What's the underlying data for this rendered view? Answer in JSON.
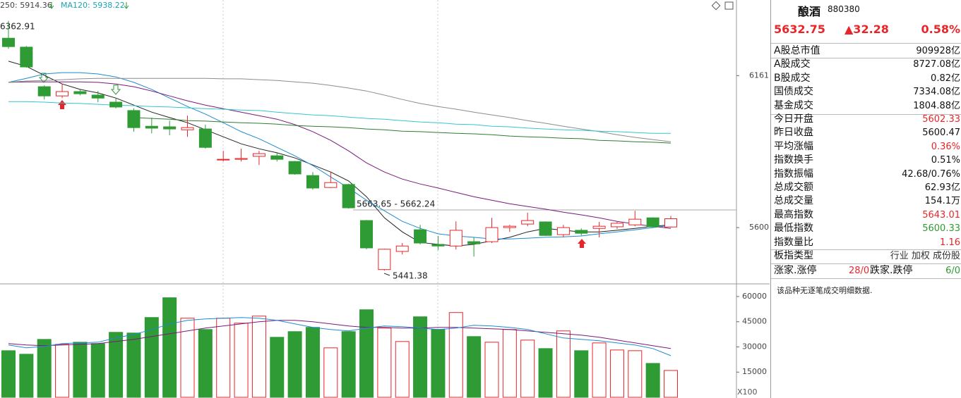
{
  "chart_data": [
    {
      "type": "candlestick",
      "legend": [
        "250: 5914.36",
        "MA120: 5938.22"
      ],
      "legend_colors": [
        "#444444",
        "#1aa3b5"
      ],
      "annotations": {
        "high": "6362.91",
        "low": "5441.38",
        "gap": "5663.65 - 5662.24"
      },
      "open": [
        6299,
        6266,
        6120,
        6086,
        6102,
        6089,
        6063,
        6032,
        5974,
        5972,
        5961,
        5964,
        5850,
        5852,
        5863,
        5865,
        5844,
        5792,
        5748,
        5759,
        5626,
        5445,
        5512,
        5592,
        5538,
        5532,
        5548,
        5548,
        5600,
        5613,
        5621,
        5574,
        5590,
        5597,
        5603,
        5610,
        5636,
        5602.33
      ],
      "high": [
        6362.91,
        6270,
        6125,
        6130,
        6110,
        6104,
        6078,
        6040,
        6006,
        5995,
        6013,
        5980,
        5883,
        5891,
        5883,
        5876,
        5846,
        5805,
        5805,
        5762,
        5628,
        5522,
        5543,
        5610,
        5569,
        5623,
        5564,
        5636,
        5610,
        5655,
        5623,
        5610,
        5597,
        5621,
        5621,
        5662,
        5638,
        5643.01
      ],
      "low": [
        6260,
        6190,
        6073,
        6078,
        6088,
        6063,
        6040,
        5954,
        5948,
        5941,
        5935,
        5891,
        5844,
        5844,
        5831,
        5844,
        5795,
        5740,
        5746,
        5670,
        5520,
        5441.38,
        5501,
        5538,
        5517,
        5519,
        5493,
        5543,
        5584,
        5605,
        5569,
        5564,
        5571,
        5564,
        5595,
        5605,
        5600,
        5600.33
      ],
      "close": [
        6268,
        6193,
        6086,
        6102,
        6094,
        6078,
        6045,
        5969,
        5967,
        5964,
        5969,
        5896,
        5852,
        5855,
        5873,
        5852,
        5798,
        5746,
        5766,
        5673,
        5525,
        5520,
        5532,
        5543,
        5532,
        5590,
        5540,
        5600,
        5605,
        5626,
        5571,
        5600,
        5579,
        5605,
        5616,
        5631,
        5603,
        5632.75
      ],
      "up_color": "#e8262a",
      "down_color": "#2e9b35",
      "lines": [
        {
          "color": "#222222",
          "values": [
            6214,
            6195,
            6162,
            6130,
            6110,
            6097,
            6078,
            6052,
            6026,
            6006,
            5987,
            5961,
            5935,
            5909,
            5891,
            5876,
            5857,
            5831,
            5805,
            5772,
            5714,
            5636,
            5584,
            5545,
            5538,
            5532,
            5538,
            5551,
            5564,
            5584,
            5597,
            5590,
            5584,
            5584,
            5590,
            5597,
            5605,
            5610
          ]
        },
        {
          "color": "#1e8bd0",
          "values": [
            6136,
            6151,
            6167,
            6172,
            6172,
            6167,
            6156,
            6136,
            6110,
            6078,
            6047,
            6019,
            5987,
            5954,
            5928,
            5896,
            5865,
            5829,
            5787,
            5746,
            5701,
            5662,
            5623,
            5597,
            5577,
            5569,
            5564,
            5558,
            5558,
            5561,
            5564,
            5566,
            5569,
            5577,
            5584,
            5592,
            5600,
            5608
          ]
        },
        {
          "color": "#7a1a7a",
          "values": [
            6136,
            6138,
            6138,
            6138,
            6138,
            6136,
            6130,
            6120,
            6104,
            6086,
            6068,
            6052,
            6039,
            6026,
            6013,
            6000,
            5980,
            5954,
            5922,
            5883,
            5839,
            5805,
            5779,
            5761,
            5746,
            5730,
            5714,
            5701,
            5688,
            5678,
            5668,
            5657,
            5647,
            5636,
            5623,
            5613,
            5605,
            5597
          ]
        },
        {
          "color": "#8c8c8c",
          "values": [
            6136,
            6141,
            6143,
            6146,
            6149,
            6151,
            6151,
            6151,
            6151,
            6151,
            6151,
            6151,
            6149,
            6149,
            6146,
            6143,
            6138,
            6133,
            6125,
            6115,
            6104,
            6089,
            6073,
            6058,
            6047,
            6037,
            6026,
            6016,
            6006,
            5995,
            5985,
            5974,
            5964,
            5954,
            5943,
            5933,
            5925,
            5917
          ]
        },
        {
          "color": "#34c6d0",
          "values": [
            6065,
            6065,
            6063,
            6060,
            6058,
            6055,
            6052,
            6050,
            6047,
            6045,
            6042,
            6039,
            6037,
            6034,
            6032,
            6026,
            6021,
            6016,
            6013,
            6008,
            6003,
            6000,
            5995,
            5990,
            5987,
            5982,
            5980,
            5974,
            5972,
            5967,
            5964,
            5961,
            5959,
            5956,
            5954,
            5951,
            5948,
            5948
          ]
        },
        {
          "color": "#2e7d32",
          "values": [
            null,
            null,
            null,
            null,
            null,
            null,
            null,
            6006,
            6003,
            6000,
            5995,
            5993,
            5990,
            5987,
            5985,
            5982,
            5977,
            5974,
            5972,
            5969,
            5964,
            5961,
            5956,
            5954,
            5951,
            5948,
            5946,
            5943,
            5938,
            5935,
            5933,
            5930,
            5928,
            5922,
            5920,
            5917,
            5915,
            5912
          ]
        }
      ],
      "ylim": [
        5400,
        6440
      ],
      "yticks": [
        5600,
        6161
      ]
    },
    {
      "type": "bar",
      "unit": "X100",
      "values": [
        27750,
        25650,
        34480,
        31540,
        32800,
        31960,
        38690,
        38270,
        47520,
        59290,
        47100,
        40370,
        47100,
        44150,
        48360,
        35740,
        39110,
        41630,
        29440,
        39110,
        52140,
        41210,
        33220,
        47940,
        40370,
        50460,
        36160,
        32800,
        40370,
        34060,
        29010,
        39530,
        27750,
        32380,
        28170,
        27750,
        20180,
        15980
      ],
      "lines": [
        {
          "color": "#7a1a7a",
          "values": [
            31960,
            31120,
            30700,
            31120,
            31540,
            31960,
            33220,
            34480,
            36160,
            37850,
            39530,
            41210,
            42470,
            43730,
            44990,
            45830,
            45830,
            44990,
            43730,
            42470,
            41630,
            41630,
            41210,
            41210,
            41630,
            41630,
            41210,
            40790,
            40370,
            39530,
            38690,
            37850,
            37000,
            35740,
            34060,
            32380,
            30700,
            29010
          ]
        },
        {
          "color": "#1e8bd0",
          "values": [
            31120,
            29440,
            30280,
            31960,
            32380,
            32800,
            35320,
            37420,
            40370,
            43730,
            45830,
            46680,
            47100,
            47520,
            47100,
            45830,
            43730,
            41630,
            40370,
            39530,
            41210,
            42470,
            42050,
            41210,
            40370,
            41210,
            42890,
            42470,
            41630,
            40370,
            37850,
            35320,
            34480,
            33640,
            32380,
            31120,
            29010,
            24810
          ]
        }
      ],
      "ylim": [
        0,
        66700
      ],
      "yticks": [
        15000,
        30000,
        45000,
        60000
      ]
    }
  ],
  "side": {
    "name": "酿酒",
    "code": "880380",
    "price": "5632.75",
    "change": "▲32.28",
    "pct": "0.58%",
    "rows": [
      {
        "label": "A股总市值",
        "value": "909928亿",
        "color": "#111111"
      },
      {
        "label": "A股成交",
        "value": "8727.08亿",
        "color": "#111111"
      },
      {
        "label": "B股成交",
        "value": "0.82亿",
        "color": "#111111"
      },
      {
        "label": "国债成交",
        "value": "7334.08亿",
        "color": "#111111"
      },
      {
        "label": "基金成交",
        "value": "1804.88亿",
        "color": "#111111"
      },
      {
        "label": "今日开盘",
        "value": "5602.33",
        "color": "#e8262a"
      },
      {
        "label": "昨日收盘",
        "value": "5600.47",
        "color": "#111111"
      },
      {
        "label": "平均涨幅",
        "value": "0.36%",
        "color": "#e8262a"
      },
      {
        "label": "指数换手",
        "value": "0.51%",
        "color": "#111111"
      },
      {
        "label": "指数振幅",
        "value": "42.68/0.76%",
        "color": "#111111"
      },
      {
        "label": "总成交额",
        "value": "62.93亿",
        "color": "#111111"
      },
      {
        "label": "总成交量",
        "value": "154.1万",
        "color": "#111111"
      },
      {
        "label": "最高指数",
        "value": "5643.01",
        "color": "#e8262a"
      },
      {
        "label": "最低指数",
        "value": "5600.33",
        "color": "#2e9b35"
      },
      {
        "label": "指数量比",
        "value": "1.16",
        "color": "#e8262a"
      },
      {
        "label": "板指类型",
        "value": "行业 加权 成份股",
        "color": "#333333"
      }
    ],
    "breadth": {
      "up_label": "涨家.涨停",
      "up_value": "28/0",
      "down_label": "跌家.跌停",
      "down_value": "6/0"
    },
    "note": "该品种无逐笔成交明细数据."
  }
}
